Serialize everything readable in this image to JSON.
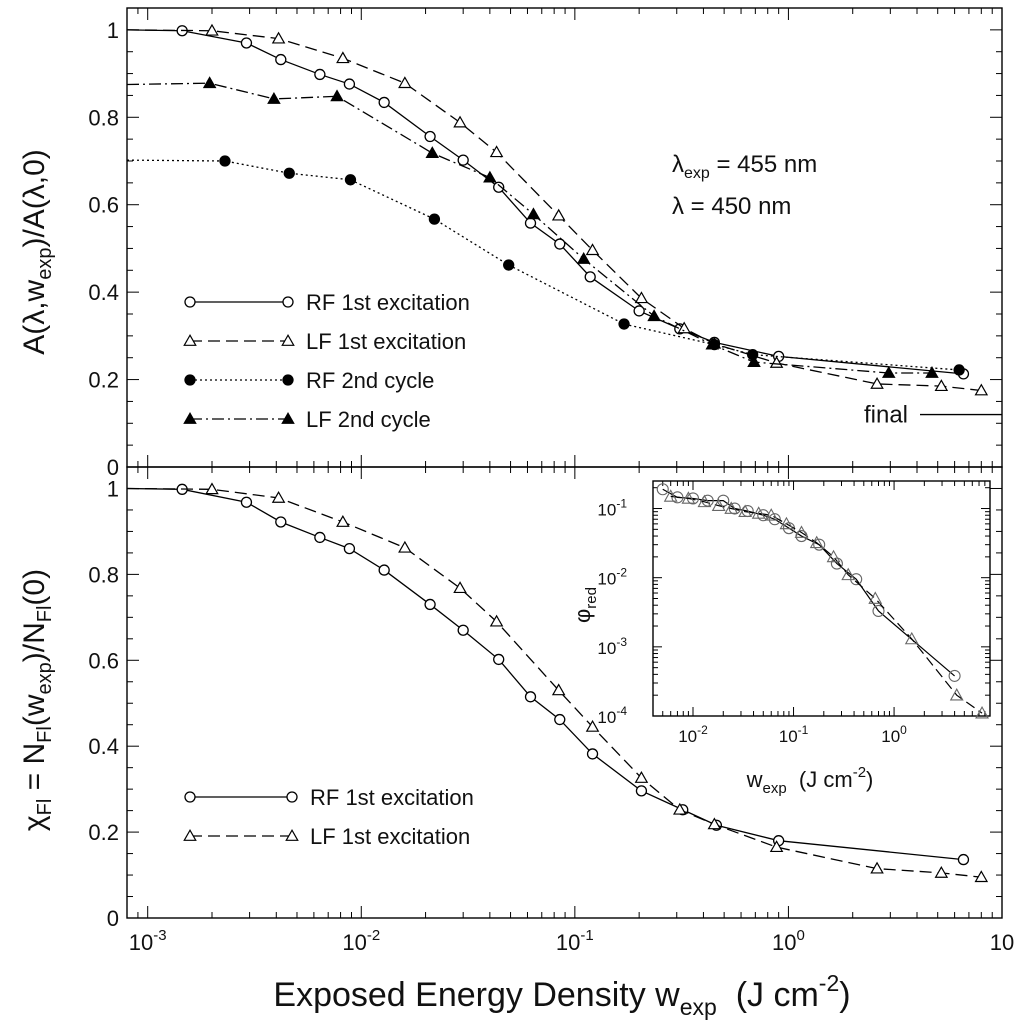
{
  "chart_data": [
    {
      "type": "line",
      "panel": "top",
      "ylabel_parts": [
        "A(",
        "λ",
        ",w",
        "exp",
        ")/A(",
        "λ",
        ",0)"
      ],
      "ylabel_full": "A(λ,wexp)/A(λ,0)",
      "xscale": "log",
      "xlim": [
        0.0008,
        10
      ],
      "ylim": [
        0,
        1.05
      ],
      "yticks": [
        "0",
        "0.2",
        "0.4",
        "0.6",
        "0.8",
        "1"
      ],
      "annotations": {
        "lambda_exp_parts": [
          "λ",
          "exp",
          " = 455 nm"
        ],
        "lambda_exp": "λexp = 455 nm",
        "lambda_parts": [
          "λ",
          " = 450 nm"
        ],
        "lambda": "λ = 450 nm",
        "final_label": "final"
      },
      "final_value": 0.12,
      "series": [
        {
          "name": "RF 1st excitation",
          "marker": "open-circle",
          "line": "solid",
          "lead_in": 1.0,
          "x": [
            0.00145,
            0.0029,
            0.0042,
            0.0064,
            0.0088,
            0.0128,
            0.021,
            0.03,
            0.044,
            0.062,
            0.085,
            0.118,
            0.2,
            0.31,
            0.45,
            0.9,
            6.6
          ],
          "y": [
            0.998,
            0.97,
            0.932,
            0.898,
            0.876,
            0.834,
            0.756,
            0.702,
            0.64,
            0.558,
            0.51,
            0.435,
            0.357,
            0.316,
            0.285,
            0.253,
            0.213
          ]
        },
        {
          "name": "LF 1st excitation",
          "marker": "open-triangle",
          "line": "dashed",
          "lead_in": 1.0,
          "x": [
            0.002,
            0.0041,
            0.0082,
            0.016,
            0.029,
            0.043,
            0.084,
            0.121,
            0.205,
            0.325,
            0.45,
            0.88,
            2.6,
            5.2,
            8.0
          ],
          "y": [
            0.998,
            0.98,
            0.935,
            0.878,
            0.788,
            0.72,
            0.575,
            0.496,
            0.386,
            0.317,
            0.282,
            0.238,
            0.19,
            0.185,
            0.175
          ]
        },
        {
          "name": "RF 2nd cycle",
          "marker": "filled-circle",
          "line": "dotted",
          "lead_in": 0.702,
          "x": [
            0.0023,
            0.0046,
            0.0089,
            0.022,
            0.049,
            0.17,
            0.45,
            0.68,
            6.3
          ],
          "y": [
            0.7,
            0.672,
            0.657,
            0.567,
            0.462,
            0.327,
            0.28,
            0.257,
            0.222
          ]
        },
        {
          "name": "LF 2nd cycle",
          "marker": "filled-triangle",
          "line": "dashdot",
          "lead_in": 0.875,
          "x": [
            0.00195,
            0.0039,
            0.0077,
            0.0215,
            0.04,
            0.064,
            0.11,
            0.235,
            0.44,
            0.69,
            2.95,
            4.7
          ],
          "y": [
            0.878,
            0.842,
            0.848,
            0.718,
            0.662,
            0.578,
            0.476,
            0.345,
            0.28,
            0.24,
            0.215,
            0.215
          ]
        }
      ]
    },
    {
      "type": "line",
      "panel": "bottom",
      "ylabel_parts": [
        "χ",
        "Fl",
        " = N",
        "Fl",
        "(w",
        "exp",
        ")/N",
        "Fl",
        "(0)"
      ],
      "ylabel_full": "χFl = NFl(wexp)/NFl(0)",
      "xlabel_parts": [
        "Exposed Energy Density w",
        "exp",
        "  (J cm",
        "-2",
        ")"
      ],
      "xlabel_full": "Exposed Energy Density wexp (J cm-2)",
      "xscale": "log",
      "xlim": [
        0.0008,
        10
      ],
      "ylim": [
        0,
        1.05
      ],
      "yticks": [
        "0",
        "0.2",
        "0.4",
        "0.6",
        "0.8",
        "1"
      ],
      "xticks": [
        {
          "base": "10",
          "exp": "-3"
        },
        {
          "base": "10",
          "exp": "-2"
        },
        {
          "base": "10",
          "exp": "-1"
        },
        {
          "base": "10",
          "exp": "0"
        },
        {
          "base": "10",
          "exp": ""
        }
      ],
      "series": [
        {
          "name": "RF 1st excitation",
          "marker": "open-circle",
          "line": "solid",
          "lead_in": 1.0,
          "x": [
            0.00145,
            0.0029,
            0.0042,
            0.0064,
            0.0088,
            0.0128,
            0.021,
            0.03,
            0.044,
            0.062,
            0.085,
            0.121,
            0.205,
            0.32,
            0.46,
            0.9,
            6.6
          ],
          "y": [
            0.998,
            0.968,
            0.922,
            0.886,
            0.86,
            0.81,
            0.73,
            0.67,
            0.602,
            0.515,
            0.462,
            0.382,
            0.296,
            0.252,
            0.216,
            0.18,
            0.136
          ]
        },
        {
          "name": "LF 1st excitation",
          "marker": "open-triangle",
          "line": "dashed",
          "lead_in": 1.0,
          "x": [
            0.002,
            0.0041,
            0.0082,
            0.016,
            0.029,
            0.043,
            0.084,
            0.121,
            0.205,
            0.31,
            0.45,
            0.88,
            2.6,
            5.2,
            8.0
          ],
          "y": [
            0.998,
            0.978,
            0.922,
            0.862,
            0.768,
            0.69,
            0.53,
            0.445,
            0.326,
            0.252,
            0.218,
            0.165,
            0.115,
            0.105,
            0.095
          ]
        }
      ]
    },
    {
      "type": "line",
      "panel": "inset",
      "xscale": "log",
      "yscale": "log",
      "xlim": [
        0.004,
        9
      ],
      "ylim": [
        0.0001,
        0.25
      ],
      "ylabel_parts": [
        "φ",
        "red"
      ],
      "ylabel_full": "φred",
      "xlabel_parts": [
        "w",
        "exp",
        "  (J cm",
        "-2",
        ")"
      ],
      "xlabel_full": "wexp (J cm-2)",
      "yticks": [
        {
          "base": "10",
          "exp": "-1"
        },
        {
          "base": "10",
          "exp": "-2"
        },
        {
          "base": "10",
          "exp": "-3"
        },
        {
          "base": "10",
          "exp": "-4"
        }
      ],
      "xticks": [
        {
          "base": "10",
          "exp": "-2"
        },
        {
          "base": "10",
          "exp": "-1"
        },
        {
          "base": "10",
          "exp": "0"
        }
      ],
      "series": [
        {
          "name": "RF 1st excitation",
          "marker": "open-circle",
          "line": "solid",
          "x": [
            0.005,
            0.007,
            0.01,
            0.014,
            0.02,
            0.026,
            0.035,
            0.05,
            0.065,
            0.09,
            0.12,
            0.18,
            0.27,
            0.42,
            0.7,
            4.0
          ],
          "y": [
            0.19,
            0.145,
            0.14,
            0.13,
            0.13,
            0.1,
            0.092,
            0.08,
            0.07,
            0.052,
            0.04,
            0.03,
            0.016,
            0.0095,
            0.0033,
            0.00038
          ]
        },
        {
          "name": "LF 1st excitation",
          "marker": "open-triangle",
          "line": "dashed",
          "x": [
            0.006,
            0.009,
            0.013,
            0.018,
            0.024,
            0.033,
            0.045,
            0.06,
            0.085,
            0.12,
            0.17,
            0.25,
            0.35,
            0.65,
            1.5,
            4.2,
            7.5
          ],
          "y": [
            0.15,
            0.14,
            0.125,
            0.11,
            0.1,
            0.09,
            0.085,
            0.08,
            0.06,
            0.045,
            0.032,
            0.02,
            0.011,
            0.005,
            0.0013,
            0.0002,
            0.00011
          ]
        }
      ]
    }
  ]
}
